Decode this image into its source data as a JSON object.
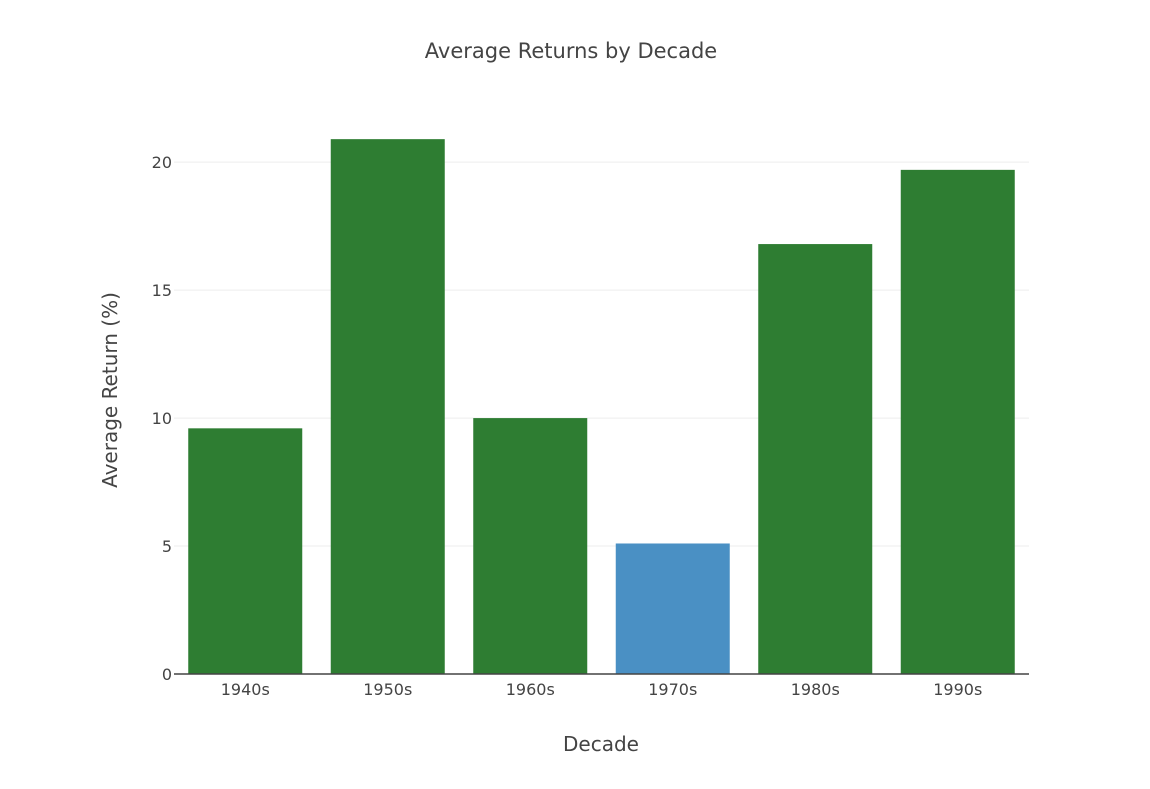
{
  "chart_data": {
    "type": "bar",
    "title": "Average Returns by Decade",
    "xlabel": "Decade",
    "ylabel": "Average Return (%)",
    "categories": [
      "1940s",
      "1950s",
      "1960s",
      "1970s",
      "1980s",
      "1990s"
    ],
    "values": [
      9.6,
      20.9,
      10.0,
      5.1,
      16.8,
      19.7
    ],
    "colors": [
      "#2e7d32",
      "#2e7d32",
      "#2e7d32",
      "#4a90c4",
      "#2e7d32",
      "#2e7d32"
    ],
    "ylim": [
      0,
      22
    ],
    "yticks": [
      0,
      5,
      10,
      15,
      20
    ],
    "grid": true,
    "legend": "none"
  }
}
